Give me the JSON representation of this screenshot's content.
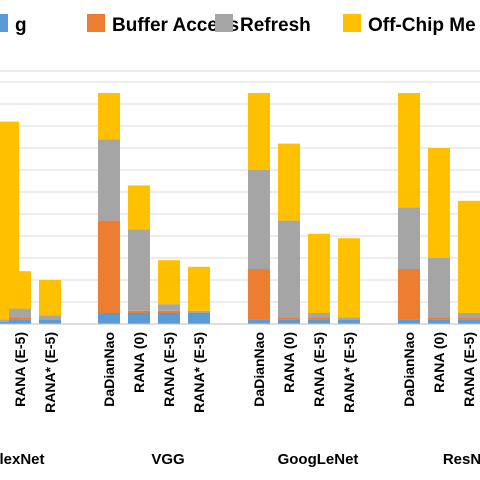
{
  "chart_data": {
    "type": "bar",
    "stacked": true,
    "legend": {
      "placement": "top",
      "items": [
        {
          "label": "g",
          "color": "#5b9bd5"
        },
        {
          "label": "Buffer Access",
          "color": "#ed7d31"
        },
        {
          "label": "Refresh",
          "color": "#a5a5a5"
        },
        {
          "label": "Off-Chip Me",
          "color": "#ffc000"
        }
      ]
    },
    "series": [
      {
        "name": "g",
        "color": "#5b9bd5"
      },
      {
        "name": "Buffer Access",
        "color": "#ed7d31"
      },
      {
        "name": "Refresh",
        "color": "#a5a5a5"
      },
      {
        "name": "Off-Chip Me",
        "color": "#ffc000"
      }
    ],
    "ylim": [
      0,
      1.1
    ],
    "grid": true,
    "groups": [
      {
        "name": "lexNet",
        "bars": [
          {
            "label": "",
            "values": [
              0.01,
              0.0,
              0.01,
              0.9
            ]
          },
          {
            "label": "RANA (E-5)",
            "values": [
              0.02,
              0.01,
              0.04,
              0.17
            ]
          },
          {
            "label": "RANA* (E-5)",
            "values": [
              0.02,
              0.0,
              0.02,
              0.16
            ]
          }
        ]
      },
      {
        "name": "VGG",
        "bars": [
          {
            "label": "DaDianNao",
            "values": [
              0.05,
              0.42,
              0.37,
              0.21
            ]
          },
          {
            "label": "RANA (0)",
            "values": [
              0.05,
              0.01,
              0.37,
              0.2
            ]
          },
          {
            "label": "RANA (E-5)",
            "values": [
              0.05,
              0.01,
              0.03,
              0.2
            ]
          },
          {
            "label": "RANA* (E-5)",
            "values": [
              0.05,
              0.0,
              0.01,
              0.2
            ]
          }
        ]
      },
      {
        "name": "GoogLeNet",
        "bars": [
          {
            "label": "DaDianNao",
            "values": [
              0.02,
              0.23,
              0.45,
              0.35
            ]
          },
          {
            "label": "RANA (0)",
            "values": [
              0.02,
              0.01,
              0.44,
              0.35
            ]
          },
          {
            "label": "RANA (E-5)",
            "values": [
              0.02,
              0.01,
              0.02,
              0.36
            ]
          },
          {
            "label": "RANA* (E-5)",
            "values": [
              0.02,
              0.0,
              0.01,
              0.36
            ]
          }
        ]
      },
      {
        "name": "ResN",
        "bars": [
          {
            "label": "DaDianNao",
            "values": [
              0.02,
              0.23,
              0.28,
              0.52
            ]
          },
          {
            "label": "RANA (0)",
            "values": [
              0.02,
              0.01,
              0.27,
              0.5
            ]
          },
          {
            "label": "RANA (E-5)",
            "values": [
              0.02,
              0.01,
              0.02,
              0.51
            ]
          }
        ]
      }
    ]
  }
}
